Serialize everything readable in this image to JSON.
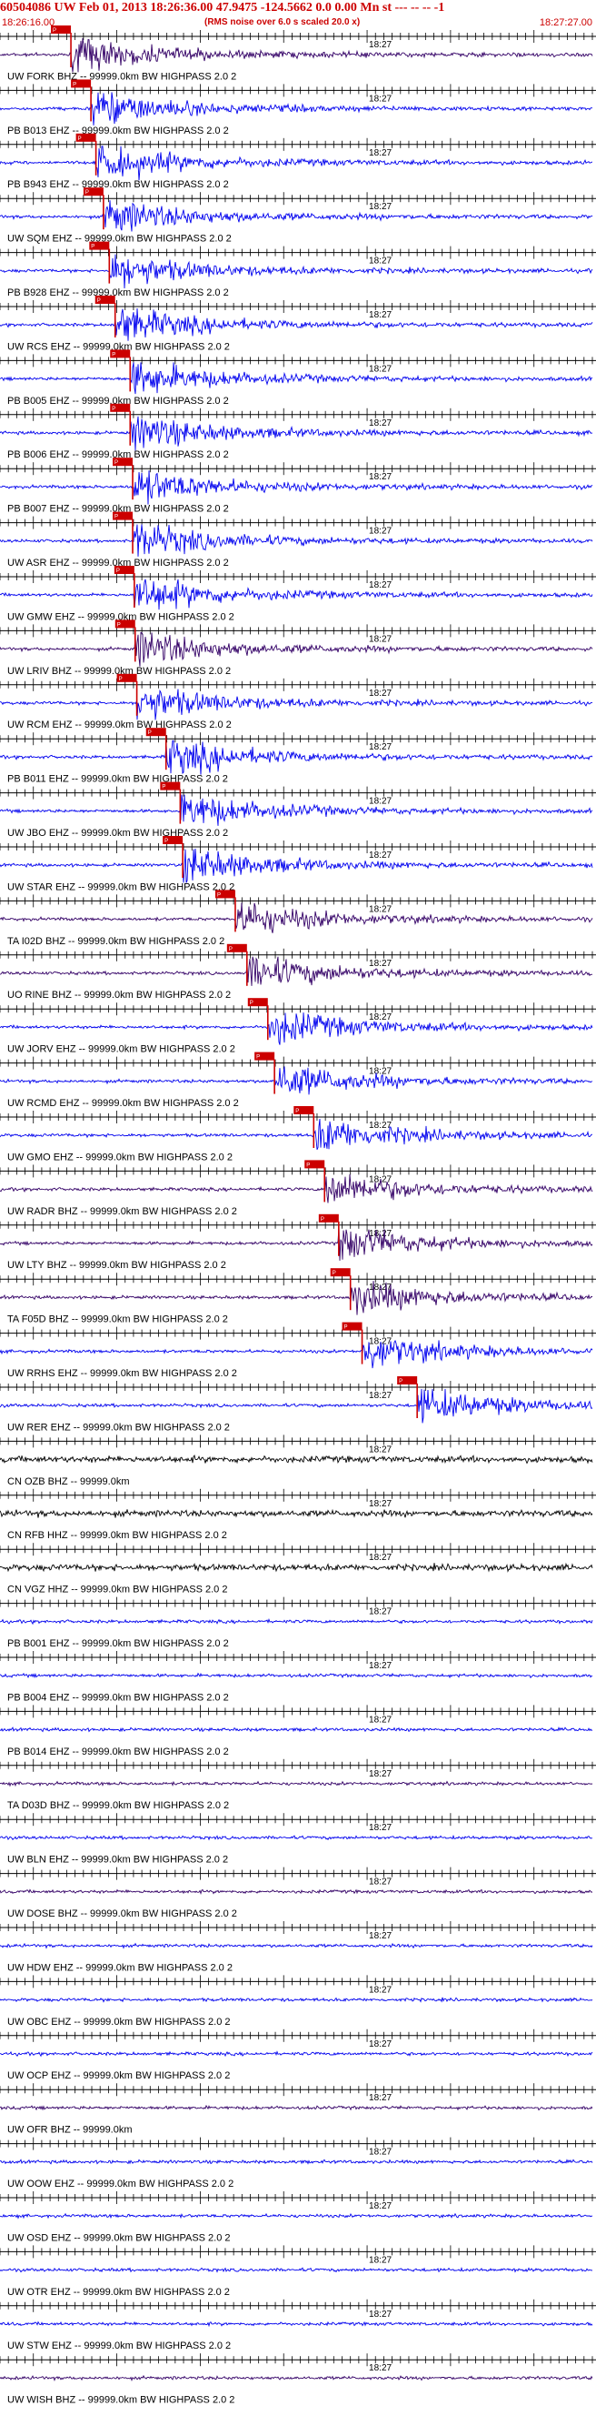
{
  "header": {
    "title": "60504086 UW Feb 01, 2013 18:26:36.00   47.9475 -124.5662  0.0 0.00 Mn st --- -- --  -1",
    "start_time": "18:26:16.00",
    "end_time": "18:27:27.00",
    "note": "(RMS noise over 6.0 s scaled 20.0 x)"
  },
  "chart_data": {
    "type": "line",
    "xlim": [
      "18:26:16.00",
      "18:27:27.00"
    ],
    "minute_marker": "18:27",
    "colors": {
      "blue": "#0000ee",
      "purple": "#330066",
      "black": "#000000",
      "pick": "#cc0000"
    },
    "traces": [
      {
        "label": "UW FORK BHZ -- 99999.0km BW  HIGHPASS  2.0  2",
        "color": "purple",
        "pick": "18:26:24.5"
      },
      {
        "label": "PB B013 EHZ -- 99999.0km BW  HIGHPASS  2.0  2",
        "color": "blue",
        "pick": "18:26:26.9"
      },
      {
        "label": "PB B943 EHZ -- 99999.0km BW  HIGHPASS  2.0  2",
        "color": "blue",
        "pick": "18:26:27.5"
      },
      {
        "label": "UW SQM EHZ -- 99999.0km BW  HIGHPASS  2.0  2",
        "color": "blue",
        "pick": "18:26:28.4"
      },
      {
        "label": "PB B928 EHZ -- 99999.0km BW  HIGHPASS  2.0  2",
        "color": "blue",
        "pick": "18:26:29.1"
      },
      {
        "label": "UW RCS EHZ -- 99999.0km BW  HIGHPASS  2.0  2",
        "color": "blue",
        "pick": "18:26:29.8"
      },
      {
        "label": "PB B005 EHZ -- 99999.0km BW  HIGHPASS  2.0  2",
        "color": "blue",
        "pick": "18:26:31.6"
      },
      {
        "label": "PB B006 EHZ -- 99999.0km BW  HIGHPASS  2.0  2",
        "color": "blue",
        "pick": "18:26:31.6"
      },
      {
        "label": "PB B007 EHZ -- 99999.0km BW  HIGHPASS  2.0  2",
        "color": "blue",
        "pick": "18:26:31.9"
      },
      {
        "label": "UW ASR EHZ -- 99999.0km BW  HIGHPASS  2.0  2",
        "color": "blue",
        "pick": "18:26:31.9"
      },
      {
        "label": "UW GMW EHZ -- 99999.0km BW  HIGHPASS  2.0  2",
        "color": "blue",
        "pick": "18:26:32.1"
      },
      {
        "label": "UW LRIV BHZ -- 99999.0km BW  HIGHPASS  2.0  2",
        "color": "purple",
        "pick": "18:26:32.2"
      },
      {
        "label": "UW RCM EHZ -- 99999.0km BW  HIGHPASS  2.0  2",
        "color": "blue",
        "pick": "18:26:32.4"
      },
      {
        "label": "PB B011 EHZ -- 99999.0km BW  HIGHPASS  2.0  2",
        "color": "blue",
        "pick": "18:26:35.9"
      },
      {
        "label": "UW JBO EHZ -- 99999.0km BW  HIGHPASS  2.0  2",
        "color": "blue",
        "pick": "18:26:37.6"
      },
      {
        "label": "UW STAR EHZ -- 99999.0km BW  HIGHPASS  2.0  2",
        "color": "blue",
        "pick": "18:26:37.9"
      },
      {
        "label": "TA I02D BHZ -- 99999.0km BW  HIGHPASS  2.0  2",
        "color": "purple",
        "pick": "18:26:44.2"
      },
      {
        "label": "UO RINE BHZ -- 99999.0km BW  HIGHPASS  2.0  2",
        "color": "purple",
        "pick": "18:26:45.6"
      },
      {
        "label": "UW JORV EHZ -- 99999.0km BW  HIGHPASS  2.0  2",
        "color": "blue",
        "pick": "18:26:48.1"
      },
      {
        "label": "UW RCMD EHZ -- 99999.0km BW  HIGHPASS  2.0  2",
        "color": "blue",
        "pick": "18:26:48.9"
      },
      {
        "label": "UW GMO EHZ -- 99999.0km BW  HIGHPASS  2.0  2",
        "color": "blue",
        "pick": "18:26:53.6"
      },
      {
        "label": "UW RADR BHZ -- 99999.0km BW  HIGHPASS  2.0  2",
        "color": "purple",
        "pick": "18:26:54.9"
      },
      {
        "label": "UW LTY BHZ -- 99999.0km BW  HIGHPASS  2.0  2",
        "color": "purple",
        "pick": "18:26:56.6"
      },
      {
        "label": "TA F05D BHZ -- 99999.0km BW  HIGHPASS  2.0  2",
        "color": "purple",
        "pick": "18:26:58.0"
      },
      {
        "label": "UW RRHS EHZ -- 99999.0km BW  HIGHPASS  2.0  2",
        "color": "blue",
        "pick": "18:26:59.4"
      },
      {
        "label": "UW RER EHZ -- 99999.0km BW  HIGHPASS  2.0  2",
        "color": "blue",
        "pick": "18:27:06.0"
      },
      {
        "label": "CN OZB BHZ -- 99999.0km",
        "color": "black",
        "pick": null
      },
      {
        "label": "CN RFB HHZ -- 99999.0km BW  HIGHPASS  2.0  2",
        "color": "black",
        "pick": null
      },
      {
        "label": "CN VGZ HHZ -- 99999.0km BW  HIGHPASS  2.0  2",
        "color": "black",
        "pick": null
      },
      {
        "label": "PB B001 EHZ -- 99999.0km BW  HIGHPASS  2.0  2",
        "color": "blue",
        "pick": null
      },
      {
        "label": "PB B004 EHZ -- 99999.0km BW  HIGHPASS  2.0  2",
        "color": "blue",
        "pick": null
      },
      {
        "label": "PB B014 EHZ -- 99999.0km BW  HIGHPASS  2.0  2",
        "color": "blue",
        "pick": null
      },
      {
        "label": "TA D03D BHZ -- 99999.0km BW  HIGHPASS  2.0  2",
        "color": "purple",
        "pick": null
      },
      {
        "label": "UW BLN EHZ -- 99999.0km BW  HIGHPASS  2.0  2",
        "color": "blue",
        "pick": null
      },
      {
        "label": "UW DOSE BHZ -- 99999.0km BW  HIGHPASS  2.0  2",
        "color": "purple",
        "pick": null
      },
      {
        "label": "UW HDW EHZ -- 99999.0km BW  HIGHPASS  2.0  2",
        "color": "blue",
        "pick": null
      },
      {
        "label": "UW OBC EHZ -- 99999.0km BW  HIGHPASS  2.0  2",
        "color": "blue",
        "pick": null
      },
      {
        "label": "UW OCP EHZ -- 99999.0km BW  HIGHPASS  2.0  2",
        "color": "blue",
        "pick": null
      },
      {
        "label": "UW OFR BHZ -- 99999.0km",
        "color": "purple",
        "pick": null
      },
      {
        "label": "UW OOW EHZ -- 99999.0km BW  HIGHPASS  2.0  2",
        "color": "blue",
        "pick": null
      },
      {
        "label": "UW OSD EHZ -- 99999.0km BW  HIGHPASS  2.0  2",
        "color": "blue",
        "pick": null
      },
      {
        "label": "UW OTR EHZ -- 99999.0km BW  HIGHPASS  2.0  2",
        "color": "blue",
        "pick": null
      },
      {
        "label": "UW STW EHZ -- 99999.0km BW  HIGHPASS  2.0  2",
        "color": "blue",
        "pick": null
      },
      {
        "label": "UW WISH BHZ -- 99999.0km BW  HIGHPASS  2.0  2",
        "color": "purple",
        "pick": null
      }
    ]
  }
}
